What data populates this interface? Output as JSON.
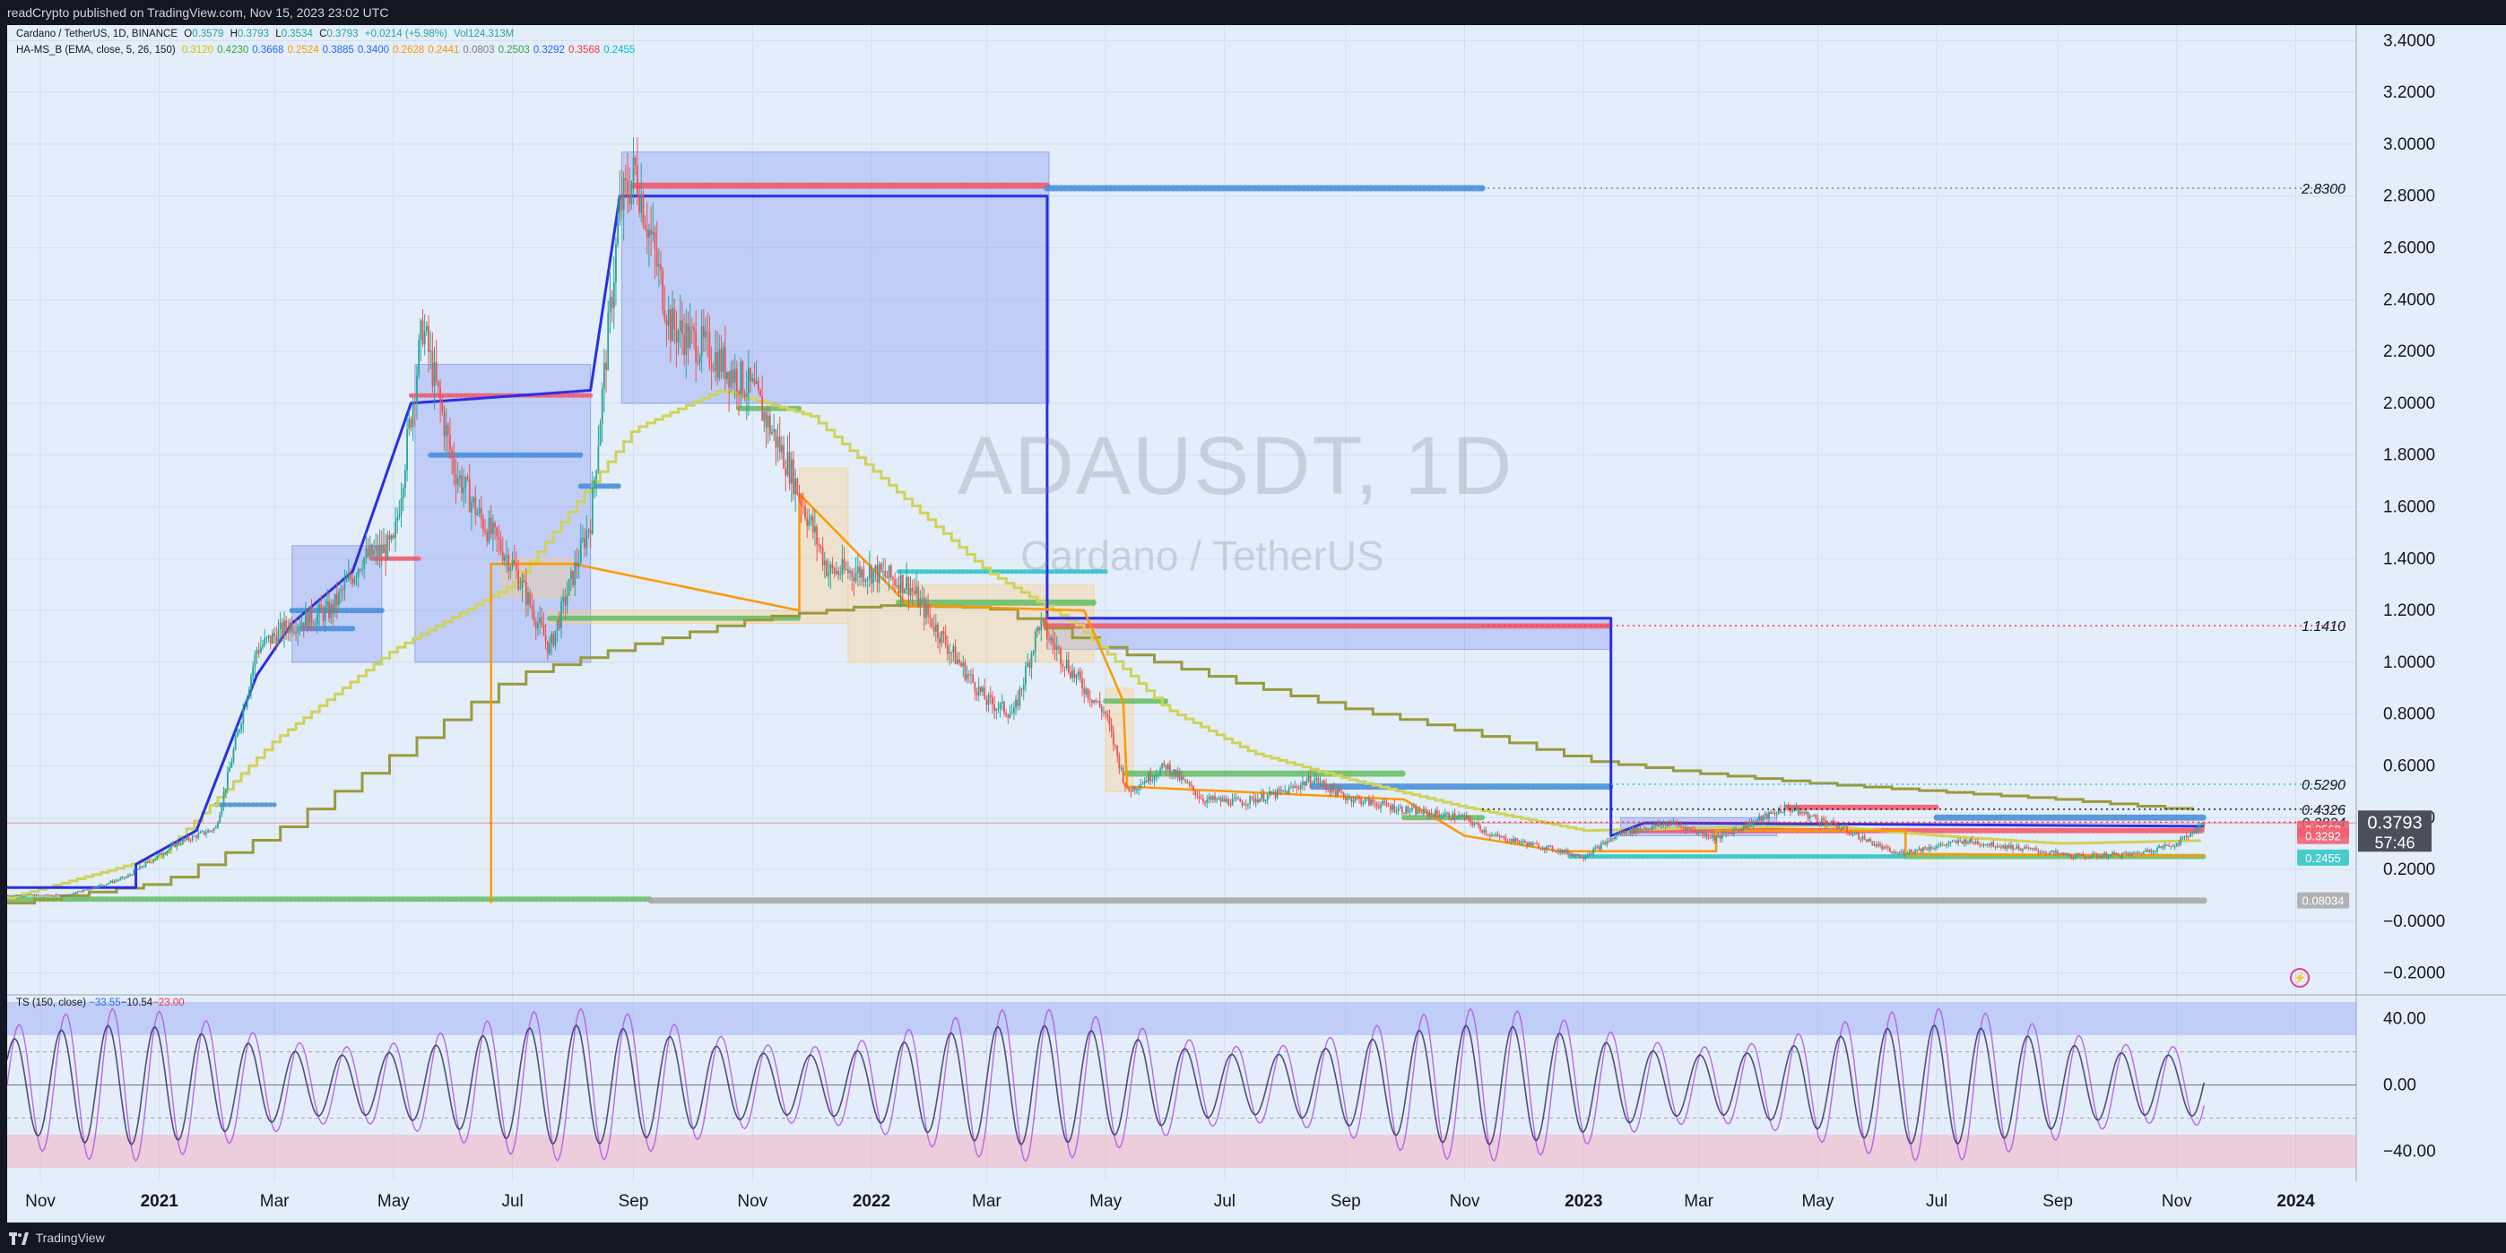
{
  "header": {
    "publish_text": "readCrypto published on TradingView.com, Nov 15, 2023 23:02 UTC"
  },
  "footer": {
    "brand": "TradingView"
  },
  "legend": {
    "symbol": "Cardano / TetherUS, 1D, BINANCE",
    "ohlc": [
      {
        "label": "O",
        "value": "0.3579"
      },
      {
        "label": "H",
        "value": "0.3793"
      },
      {
        "label": "L",
        "value": "0.3534"
      },
      {
        "label": "C",
        "value": "0.3793"
      }
    ],
    "change": "+0.0214 (+5.98%)",
    "volume": "Vol124.313M",
    "indicator_name": "HA-MS_B (EMA, close, 5, 26, 150)",
    "indicator_values": [
      {
        "value": "0.3120",
        "color": "#d4c200"
      },
      {
        "value": "0.4230",
        "color": "#3aa23a"
      },
      {
        "value": "0.3668",
        "color": "#2962ff"
      },
      {
        "value": "0.2524",
        "color": "#ff9800"
      },
      {
        "value": "0.3885",
        "color": "#2962ff"
      },
      {
        "value": "0.3400",
        "color": "#2962ff"
      },
      {
        "value": "0.2628",
        "color": "#ff9800"
      },
      {
        "value": "0.2441",
        "color": "#ff9800"
      },
      {
        "value": "0.0803",
        "color": "#808080"
      },
      {
        "value": "0.2503",
        "color": "#3aa23a"
      },
      {
        "value": "0.3292",
        "color": "#2962ff"
      },
      {
        "value": "0.3568",
        "color": "#f23645"
      },
      {
        "value": "0.2455",
        "color": "#00bcd4"
      }
    ],
    "ts_name": "TS (150, close)",
    "ts_values": [
      {
        "value": "−33.55",
        "color": "#2962ff"
      },
      {
        "value": "−10.54",
        "color": "#131722"
      },
      {
        "value": "−23.00",
        "color": "#f23645"
      }
    ]
  },
  "watermark": {
    "symbol": "ADAUSDT, 1D",
    "name": "Cardano / TetherUS"
  },
  "colors": {
    "background": "#e3eefa",
    "up": "#26a69a",
    "down": "#ef5350",
    "zone_blue": "#7b8ff0",
    "zone_orange": "#ffcc80",
    "line_blue": "#2a2ee8",
    "line_orange": "#ff9800",
    "line_olive": "#9a9a3c",
    "line_yellow": "#cfd35a",
    "dots_blue": "#4a90d8",
    "dots_red": "#f25a6a",
    "dots_green": "#6abf69",
    "dots_cyan": "#2cc4c4",
    "dots_gray": "#a7a7a7"
  },
  "chart_data": [
    {
      "type": "candlestick",
      "title": "ADAUSDT, 1D",
      "ylim": [
        -0.2,
        3.45
      ],
      "y_ticks": [
        "3.4000",
        "3.2000",
        "3.0000",
        "2.8000",
        "2.6000",
        "2.4000",
        "2.2000",
        "2.0000",
        "1.8000",
        "1.6000",
        "1.4000",
        "1.2000",
        "1.0000",
        "0.8000",
        "0.6000",
        "0.4000",
        "0.2000",
        "−0.0000",
        "−0.2000"
      ],
      "y_tick_values": [
        3.4,
        3.2,
        3.0,
        2.8,
        2.6,
        2.4,
        2.2,
        2.0,
        1.8,
        1.6,
        1.4,
        1.2,
        1.0,
        0.8,
        0.6,
        0.4,
        0.2,
        0.0,
        -0.2
      ],
      "x_ticks": [
        "Nov",
        "2021",
        "Mar",
        "May",
        "Jul",
        "Sep",
        "Nov",
        "2022",
        "Mar",
        "May",
        "Jul",
        "Sep",
        "Nov",
        "2023",
        "Mar",
        "May",
        "Jul",
        "Sep",
        "Nov",
        "2024"
      ],
      "x_tick_dates": [
        "2020-11-01",
        "2021-01-01",
        "2021-03-01",
        "2021-05-01",
        "2021-07-01",
        "2021-09-01",
        "2021-11-01",
        "2022-01-01",
        "2022-03-01",
        "2022-05-01",
        "2022-07-01",
        "2022-09-01",
        "2022-11-01",
        "2023-01-01",
        "2023-03-01",
        "2023-05-01",
        "2023-07-01",
        "2023-09-01",
        "2023-11-01",
        "2024-01-01"
      ],
      "price_path": [
        [
          "2020-10-15",
          0.1
        ],
        [
          "2020-11-15",
          0.1
        ],
        [
          "2020-12-15",
          0.17
        ],
        [
          "2021-01-10",
          0.3
        ],
        [
          "2021-01-30",
          0.36
        ],
        [
          "2021-02-20",
          1.05
        ],
        [
          "2021-03-10",
          1.15
        ],
        [
          "2021-03-30",
          1.2
        ],
        [
          "2021-04-15",
          1.4
        ],
        [
          "2021-05-01",
          1.45
        ],
        [
          "2021-05-16",
          2.3
        ],
        [
          "2021-06-01",
          1.75
        ],
        [
          "2021-06-15",
          1.55
        ],
        [
          "2021-07-01",
          1.38
        ],
        [
          "2021-07-20",
          1.05
        ],
        [
          "2021-08-10",
          1.55
        ],
        [
          "2021-08-25",
          2.75
        ],
        [
          "2021-09-02",
          2.9
        ],
        [
          "2021-09-20",
          2.3
        ],
        [
          "2021-10-10",
          2.2
        ],
        [
          "2021-11-01",
          2.05
        ],
        [
          "2021-11-20",
          1.75
        ],
        [
          "2021-12-10",
          1.35
        ],
        [
          "2022-01-01",
          1.35
        ],
        [
          "2022-01-20",
          1.3
        ],
        [
          "2022-02-10",
          1.05
        ],
        [
          "2022-03-01",
          0.85
        ],
        [
          "2022-03-15",
          0.8
        ],
        [
          "2022-03-28",
          1.15
        ],
        [
          "2022-04-15",
          0.95
        ],
        [
          "2022-05-01",
          0.8
        ],
        [
          "2022-05-12",
          0.5
        ],
        [
          "2022-06-01",
          0.6
        ],
        [
          "2022-06-20",
          0.47
        ],
        [
          "2022-07-10",
          0.46
        ],
        [
          "2022-08-01",
          0.5
        ],
        [
          "2022-08-15",
          0.55
        ],
        [
          "2022-09-01",
          0.48
        ],
        [
          "2022-10-01",
          0.43
        ],
        [
          "2022-11-01",
          0.4
        ],
        [
          "2022-11-15",
          0.33
        ],
        [
          "2022-12-15",
          0.28
        ],
        [
          "2023-01-01",
          0.25
        ],
        [
          "2023-01-20",
          0.34
        ],
        [
          "2023-02-15",
          0.38
        ],
        [
          "2023-03-10",
          0.32
        ],
        [
          "2023-04-15",
          0.44
        ],
        [
          "2023-05-10",
          0.37
        ],
        [
          "2023-06-10",
          0.26
        ],
        [
          "2023-07-01",
          0.29
        ],
        [
          "2023-07-15",
          0.31
        ],
        [
          "2023-08-15",
          0.28
        ],
        [
          "2023-09-10",
          0.25
        ],
        [
          "2023-10-10",
          0.26
        ],
        [
          "2023-11-01",
          0.3
        ],
        [
          "2023-11-15",
          0.3793
        ]
      ],
      "series": [
        {
          "name": "EMA slow (olive)",
          "points": [
            [
              "2020-10-15",
              0.07
            ],
            [
              "2021-01-01",
              0.15
            ],
            [
              "2021-03-01",
              0.35
            ],
            [
              "2021-05-01",
              0.65
            ],
            [
              "2021-07-01",
              0.95
            ],
            [
              "2021-09-01",
              1.07
            ],
            [
              "2021-11-01",
              1.17
            ],
            [
              "2022-01-01",
              1.22
            ],
            [
              "2022-03-01",
              1.21
            ],
            [
              "2022-05-01",
              1.05
            ],
            [
              "2022-07-01",
              0.93
            ],
            [
              "2022-09-01",
              0.82
            ],
            [
              "2022-11-01",
              0.73
            ],
            [
              "2023-01-01",
              0.62
            ],
            [
              "2023-03-01",
              0.57
            ],
            [
              "2023-05-01",
              0.53
            ],
            [
              "2023-07-01",
              0.5
            ],
            [
              "2023-09-01",
              0.47
            ],
            [
              "2023-11-15",
              0.423
            ]
          ]
        },
        {
          "name": "EMA mid (yellow)",
          "points": [
            [
              "2020-10-15",
              0.09
            ],
            [
              "2021-01-01",
              0.25
            ],
            [
              "2021-03-01",
              0.7
            ],
            [
              "2021-05-01",
              1.05
            ],
            [
              "2021-07-01",
              1.3
            ],
            [
              "2021-09-01",
              1.9
            ],
            [
              "2021-10-15",
              2.05
            ],
            [
              "2021-12-01",
              1.95
            ],
            [
              "2022-01-15",
              1.65
            ],
            [
              "2022-03-01",
              1.35
            ],
            [
              "2022-04-15",
              1.15
            ],
            [
              "2022-06-01",
              0.82
            ],
            [
              "2022-07-15",
              0.65
            ],
            [
              "2022-09-01",
              0.55
            ],
            [
              "2022-11-01",
              0.44
            ],
            [
              "2023-01-01",
              0.35
            ],
            [
              "2023-03-01",
              0.36
            ],
            [
              "2023-05-01",
              0.37
            ],
            [
              "2023-07-01",
              0.33
            ],
            [
              "2023-09-01",
              0.3
            ],
            [
              "2023-11-15",
              0.312
            ]
          ]
        },
        {
          "name": "Blue step",
          "points": [
            [
              "2020-10-15",
              0.13
            ],
            [
              "2020-12-20",
              0.13
            ],
            [
              "2020-12-20",
              0.22
            ],
            [
              "2021-01-20",
              0.35
            ],
            [
              "2021-02-20",
              0.95
            ],
            [
              "2021-03-10",
              1.15
            ],
            [
              "2021-04-10",
              1.35
            ],
            [
              "2021-05-10",
              2.0
            ],
            [
              "2021-08-10",
              2.05
            ],
            [
              "2021-08-25",
              2.8
            ],
            [
              "2022-04-01",
              2.8
            ],
            [
              "2022-04-01",
              1.17
            ],
            [
              "2023-01-15",
              1.17
            ],
            [
              "2023-01-15",
              0.33
            ],
            [
              "2023-02-01",
              0.38
            ],
            [
              "2023-11-15",
              0.3668
            ]
          ]
        },
        {
          "name": "Orange step",
          "points": [
            [
              "2021-06-20",
              0.07
            ],
            [
              "2021-06-20",
              1.38
            ],
            [
              "2021-08-01",
              1.38
            ],
            [
              "2021-11-25",
              1.2
            ],
            [
              "2021-11-25",
              1.65
            ],
            [
              "2022-01-20",
              1.22
            ],
            [
              "2022-04-20",
              1.2
            ],
            [
              "2022-05-10",
              0.85
            ],
            [
              "2022-05-12",
              0.52
            ],
            [
              "2022-10-01",
              0.47
            ],
            [
              "2022-11-01",
              0.33
            ],
            [
              "2022-12-20",
              0.27
            ],
            [
              "2023-03-10",
              0.27
            ],
            [
              "2023-03-10",
              0.35
            ],
            [
              "2023-06-15",
              0.35
            ],
            [
              "2023-06-15",
              0.26
            ],
            [
              "2023-11-15",
              0.2524
            ]
          ]
        }
      ],
      "level_lines": [
        {
          "value": 2.83,
          "label": "2.8300",
          "color": "#4a90d8"
        },
        {
          "value": 1.141,
          "label": "1.1410",
          "color": "#f23645"
        },
        {
          "value": 0.529,
          "label": "0.5290",
          "color": "#2cc4c4"
        },
        {
          "value": 0.4326,
          "label": "0.4326",
          "color": "#131722"
        },
        {
          "value": 0.3824,
          "label": "0.3824",
          "color": "#f23645"
        }
      ],
      "right_tags": [
        {
          "value": 0.3568,
          "label": "0.3568",
          "color": "#f25a6a"
        },
        {
          "value": 0.3292,
          "label": "0.3292",
          "color": "#f25a6a"
        },
        {
          "value": 0.2455,
          "label": "0.2455",
          "color": "#2cc4c4"
        },
        {
          "value": 0.08034,
          "label": "0.08034",
          "color": "#a7a7a7"
        }
      ],
      "last_price": {
        "value": 0.3793,
        "label": "0.3793",
        "countdown": "57:46"
      }
    },
    {
      "type": "line",
      "title": "TS (150, close)",
      "ylim": [
        -50,
        50
      ],
      "y_ticks": [
        "40.00",
        "0.00",
        "−40.00"
      ],
      "y_tick_values": [
        40,
        0,
        -40
      ],
      "bands": {
        "upper": [
          30,
          50
        ],
        "lower": [
          -50,
          -30
        ],
        "dashed": [
          20,
          -20
        ]
      },
      "series": [
        {
          "name": "TS fast",
          "color": "#b659e8",
          "amplitude": 46,
          "period_days": 24
        },
        {
          "name": "TS slow",
          "color": "#3d3d6e",
          "amplitude": 36,
          "period_days": 24
        }
      ]
    }
  ]
}
